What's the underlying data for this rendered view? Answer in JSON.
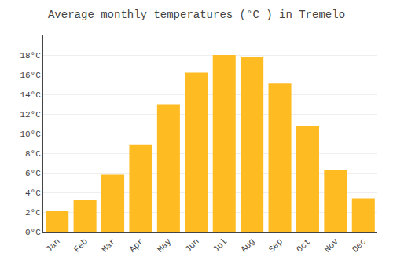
{
  "chart_data": {
    "type": "bar",
    "title": "Average monthly temperatures (°C ) in Tremelo",
    "categories": [
      "Jan",
      "Feb",
      "Mar",
      "Apr",
      "May",
      "Jun",
      "Jul",
      "Aug",
      "Sep",
      "Oct",
      "Nov",
      "Dec"
    ],
    "values": [
      2.1,
      3.2,
      5.8,
      8.9,
      13.0,
      16.2,
      18.0,
      17.8,
      15.1,
      10.8,
      6.3,
      3.4
    ],
    "color": "#FFBB22",
    "ylim": [
      0,
      20
    ],
    "yticks": [
      {
        "value": 0,
        "label": "0°C"
      },
      {
        "value": 2,
        "label": "2°C"
      },
      {
        "value": 4,
        "label": "4°C"
      },
      {
        "value": 6,
        "label": "6°C"
      },
      {
        "value": 8,
        "label": "8°C"
      },
      {
        "value": 10,
        "label": "10°C"
      },
      {
        "value": 12,
        "label": "12°C"
      },
      {
        "value": 14,
        "label": "14°C"
      },
      {
        "value": 16,
        "label": "16°C"
      },
      {
        "value": 18,
        "label": "18°C"
      }
    ],
    "grid": true
  }
}
